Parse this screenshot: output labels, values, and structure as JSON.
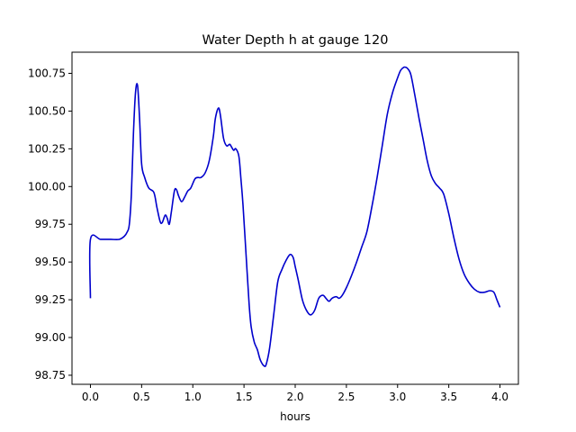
{
  "chart_data": {
    "type": "line",
    "title": "Water Depth h at gauge 120",
    "xlabel": "hours",
    "ylabel": "",
    "xlim": [
      -0.18,
      4.18
    ],
    "ylim": [
      98.69,
      100.89
    ],
    "xticks": [
      0.0,
      0.5,
      1.0,
      1.5,
      2.0,
      2.5,
      3.0,
      3.5,
      4.0
    ],
    "xtick_labels": [
      "0.0",
      "0.5",
      "1.0",
      "1.5",
      "2.0",
      "2.5",
      "3.0",
      "3.5",
      "4.0"
    ],
    "yticks": [
      98.75,
      99.0,
      99.25,
      99.5,
      99.75,
      100.0,
      100.25,
      100.5,
      100.75
    ],
    "ytick_labels": [
      "98.75",
      "99.00",
      "99.25",
      "99.50",
      "99.75",
      "100.00",
      "100.25",
      "100.50",
      "100.75"
    ],
    "grid": false,
    "series": [
      {
        "color": "#0000cc",
        "x": [
          0.0,
          0.0,
          0.1,
          0.2,
          0.28,
          0.33,
          0.36,
          0.38,
          0.4,
          0.42,
          0.44,
          0.46,
          0.48,
          0.5,
          0.53,
          0.57,
          0.62,
          0.65,
          0.68,
          0.7,
          0.73,
          0.75,
          0.77,
          0.79,
          0.82,
          0.84,
          0.86,
          0.89,
          0.92,
          0.95,
          0.98,
          1.02,
          1.05,
          1.08,
          1.12,
          1.16,
          1.2,
          1.22,
          1.25,
          1.27,
          1.3,
          1.33,
          1.36,
          1.38,
          1.4,
          1.42,
          1.45,
          1.47,
          1.49,
          1.52,
          1.55,
          1.57,
          1.6,
          1.63,
          1.66,
          1.7,
          1.72,
          1.75,
          1.79,
          1.83,
          1.87,
          1.91,
          1.95,
          1.98,
          2.0,
          2.03,
          2.07,
          2.11,
          2.15,
          2.19,
          2.23,
          2.27,
          2.3,
          2.33,
          2.36,
          2.4,
          2.43,
          2.46,
          2.5,
          2.55,
          2.6,
          2.65,
          2.7,
          2.75,
          2.8,
          2.85,
          2.9,
          2.95,
          3.0,
          3.03,
          3.06,
          3.08,
          3.1,
          3.13,
          3.17,
          3.21,
          3.25,
          3.29,
          3.33,
          3.37,
          3.41,
          3.45,
          3.5,
          3.55,
          3.6,
          3.65,
          3.7,
          3.75,
          3.8,
          3.85,
          3.9,
          3.94,
          3.97,
          4.0
        ],
        "y": [
          99.26,
          99.65,
          99.65,
          99.65,
          99.65,
          99.67,
          99.7,
          99.75,
          99.95,
          100.35,
          100.62,
          100.67,
          100.45,
          100.15,
          100.06,
          99.99,
          99.96,
          99.86,
          99.77,
          99.76,
          99.81,
          99.79,
          99.75,
          99.83,
          99.97,
          99.98,
          99.94,
          99.9,
          99.93,
          99.97,
          99.99,
          100.05,
          100.06,
          100.06,
          100.09,
          100.17,
          100.33,
          100.45,
          100.52,
          100.47,
          100.32,
          100.27,
          100.28,
          100.26,
          100.24,
          100.25,
          100.2,
          100.05,
          99.88,
          99.55,
          99.22,
          99.07,
          98.97,
          98.92,
          98.85,
          98.81,
          98.83,
          98.93,
          99.15,
          99.37,
          99.45,
          99.51,
          99.55,
          99.53,
          99.47,
          99.38,
          99.25,
          99.18,
          99.15,
          99.18,
          99.26,
          99.28,
          99.26,
          99.24,
          99.26,
          99.27,
          99.26,
          99.28,
          99.33,
          99.41,
          99.5,
          99.6,
          99.7,
          99.87,
          100.06,
          100.27,
          100.48,
          100.62,
          100.72,
          100.77,
          100.79,
          100.79,
          100.78,
          100.74,
          100.6,
          100.45,
          100.31,
          100.17,
          100.07,
          100.02,
          99.99,
          99.95,
          99.82,
          99.66,
          99.52,
          99.42,
          99.36,
          99.32,
          99.3,
          99.3,
          99.31,
          99.3,
          99.25,
          99.2
        ]
      }
    ]
  }
}
